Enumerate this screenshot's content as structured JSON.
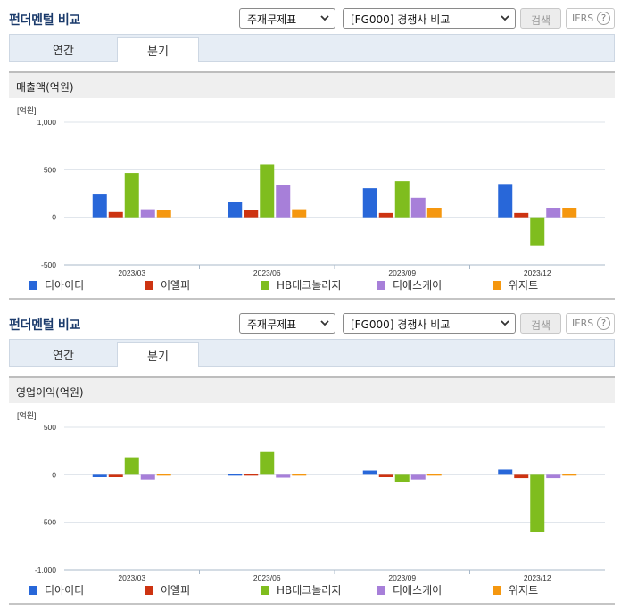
{
  "colors": {
    "diaiti": "#2867d9",
    "iellpi": "#cd3311",
    "hb": "#7fbd1e",
    "dieseukei": "#a77fd9",
    "wijiteu": "#f5970f"
  },
  "panels": [
    {
      "title": "펀더멘털 비교",
      "select_type": "주재무제표",
      "select_compare": "[FG000] 경쟁사 비교",
      "search_label": "검색",
      "ifrs_label": "IFRS",
      "help_glyph": "?",
      "tabs": [
        {
          "label": "연간",
          "active": false
        },
        {
          "label": "분기",
          "active": true
        }
      ],
      "subheading": "매출액(억원)",
      "unit_label": "[억원]",
      "legend": [
        "디아이티",
        "이엘피",
        "HB테크놀러지",
        "디에스케이",
        "위지트"
      ]
    },
    {
      "title": "펀더멘털 비교",
      "select_type": "주재무제표",
      "select_compare": "[FG000] 경쟁사 비교",
      "search_label": "검색",
      "ifrs_label": "IFRS",
      "help_glyph": "?",
      "tabs": [
        {
          "label": "연간",
          "active": false
        },
        {
          "label": "분기",
          "active": true
        }
      ],
      "subheading": "영업이익(억원)",
      "unit_label": "[억원]",
      "legend": [
        "디아이티",
        "이엘피",
        "HB테크놀러지",
        "디에스케이",
        "위지트"
      ]
    }
  ],
  "chart_data": [
    {
      "type": "bar",
      "title": "매출액(억원)",
      "ylabel": "[억원]",
      "categories": [
        "2023/03",
        "2023/06",
        "2023/09",
        "2023/12"
      ],
      "yticks": [
        "1,000",
        "500",
        "0",
        "-500"
      ],
      "ylim": [
        -500,
        1000
      ],
      "grid": true,
      "legend_position": "bottom",
      "series": [
        {
          "name": "디아이티",
          "color": "#2867d9",
          "values": [
            240,
            165,
            305,
            350
          ]
        },
        {
          "name": "이엘피",
          "color": "#cd3311",
          "values": [
            55,
            75,
            45,
            45
          ]
        },
        {
          "name": "HB테크놀러지",
          "color": "#7fbd1e",
          "values": [
            465,
            555,
            380,
            -300
          ]
        },
        {
          "name": "디에스케이",
          "color": "#a77fd9",
          "values": [
            85,
            335,
            205,
            100
          ]
        },
        {
          "name": "위지트",
          "color": "#f5970f",
          "values": [
            75,
            85,
            100,
            100
          ]
        }
      ]
    },
    {
      "type": "bar",
      "title": "영업이익(억원)",
      "ylabel": "[억원]",
      "categories": [
        "2023/03",
        "2023/06",
        "2023/09",
        "2023/12"
      ],
      "yticks": [
        "500",
        "0",
        "-500",
        "-1,000"
      ],
      "ylim": [
        -1000,
        500
      ],
      "grid": true,
      "legend_position": "bottom",
      "series": [
        {
          "name": "디아이티",
          "color": "#2867d9",
          "values": [
            -25,
            -15,
            45,
            55
          ]
        },
        {
          "name": "이엘피",
          "color": "#cd3311",
          "values": [
            -25,
            0,
            -25,
            -35
          ]
        },
        {
          "name": "HB테크놀러지",
          "color": "#7fbd1e",
          "values": [
            185,
            240,
            -80,
            -600
          ]
        },
        {
          "name": "디에스케이",
          "color": "#a77fd9",
          "values": [
            -50,
            -30,
            -50,
            -35
          ]
        },
        {
          "name": "위지트",
          "color": "#f5970f",
          "values": [
            0,
            0,
            15,
            15
          ]
        }
      ]
    }
  ]
}
